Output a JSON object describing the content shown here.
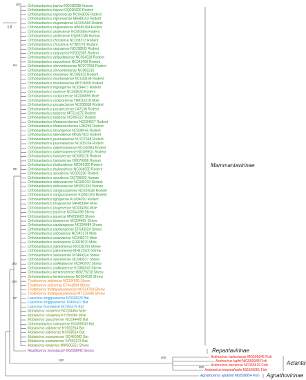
{
  "scale_bar": "1.0",
  "genus_colors": {
    "Orthohantavirus": "#2e9a2e",
    "Thottimvirus": "#e8801e",
    "Loanvirus": "#1a9ad8",
    "Mobatvirus": "#5f8f1a",
    "Reptillovirus": "#9a3fa8",
    "Actinovirus": "#e8201a",
    "Agnathovirus": "#2060d8"
  },
  "leaves": [
    {
      "name": "Orthohantavirus bayoui",
      "info": "NC038298 Human"
    },
    {
      "name": "Orthohantavirus bayoui",
      "info": "GQ200820 Rodent"
    },
    {
      "name": "Orthohantavirus nigrorivense",
      "info": "NC043005 Rodent"
    },
    {
      "name": "Orthohantavirus nigrorivense",
      "info": "AB689163 Rodent"
    },
    {
      "name": "Orthohantavirus maporalense",
      "info": "NC034568 Rodent"
    },
    {
      "name": "Orthohantavirus maporalense",
      "info": "AB689164 Rodent"
    },
    {
      "name": "Orthohantavirus andesense",
      "info": "NC003466 Rodent"
    },
    {
      "name": "Orthohantavirus andesense",
      "info": "OQ092245 Human"
    },
    {
      "name": "Orthohantavirus choclense",
      "info": "NC038373 Rodent"
    },
    {
      "name": "Orthohantavirus choclense",
      "info": "KT983771 Rodent"
    },
    {
      "name": "Orthohantavirus negraense",
      "info": "NC038505 Rodent"
    },
    {
      "name": "Orthohantavirus negraense",
      "info": "KP202359 Rodent"
    },
    {
      "name": "Orthohantavirus delgaditoense",
      "info": "NC034528 Rodent"
    },
    {
      "name": "Orthohantavirus nezoclense",
      "info": "NC043409 Rodent"
    },
    {
      "name": "Orthohantavirus sinnombreense",
      "info": "NC077669 Rodent"
    },
    {
      "name": "Orthohantavirus sinnombreense",
      "info": "NC005216"
    },
    {
      "name": "Orthohantavirus moroense",
      "info": "NC038423 Rodent"
    },
    {
      "name": "Orthohantavirus montanoense",
      "info": "NC034196 Rodent"
    },
    {
      "name": "Orthohantavirus montanoense",
      "info": "AB703008 Rodent"
    },
    {
      "name": "Orthohantavirus fugongense",
      "info": "NC034471 Rodent"
    },
    {
      "name": "Orthohantavirus luxiense",
      "info": "NC038530 Rodent"
    },
    {
      "name": "Orthohantavirus rockportense",
      "info": "NC038696 Mole"
    },
    {
      "name": "Orthohantavirus rockportense",
      "info": "HM015218 Mole"
    },
    {
      "name": "Orthohantavirus prospectense",
      "info": "NC038938 Rodent"
    },
    {
      "name": "Orthohantavirus prospectense",
      "info": "U47136 Rodent"
    },
    {
      "name": "Orthohantavirus tulaense",
      "info": "MT514275 Rodent"
    },
    {
      "name": "Orthohantavirus tulaense",
      "info": "NC005227 Rodent"
    },
    {
      "name": "Orthohantavirus khabarovskense",
      "info": "NC034527 Rodent"
    },
    {
      "name": "Orthohantavirus khabarovskense",
      "info": "U35255 Rodent"
    },
    {
      "name": "Orthohantavirus fusongense",
      "info": "NC038446 Rodent"
    },
    {
      "name": "Orthohantavirus tatenalense",
      "info": "MN267822 Rodent"
    },
    {
      "name": "Orthohantavirus puumalaense",
      "info": "NC077668 Rodent"
    },
    {
      "name": "Orthohantavirus puumalaense",
      "info": "NC005224 Rodent"
    },
    {
      "name": "Orthohantavirus dabieshanense",
      "info": "NC038384 Rodent"
    },
    {
      "name": "Orthohantavirus dabieshanense",
      "info": "NC089611 Rodent"
    },
    {
      "name": "Orthohantavirus hantanense",
      "info": "NC005218 Rodent"
    },
    {
      "name": "Orthohantavirus hantanense",
      "info": "OK079096 Human"
    },
    {
      "name": "Orthohantavirus thailandense",
      "info": "MZ343360 Rodent"
    },
    {
      "name": "Orthohantavirus thailandense",
      "info": "NC034555 Rodent"
    },
    {
      "name": "Orthohantavirus seoulense",
      "info": "NC005236 Rodent"
    },
    {
      "name": "Orthohantavirus seoulense",
      "info": "OQ736692 Human"
    },
    {
      "name": "Orthohantavirus dobravaense",
      "info": "NC005233 Rodent"
    },
    {
      "name": "Orthohantavirus dobravaense",
      "info": "MH251334 Human"
    },
    {
      "name": "Orthohantavirus sangassouense",
      "info": "NC034526 Rodent"
    },
    {
      "name": "Orthohantavirus sangassouense",
      "info": "KQ082303 Rodent"
    },
    {
      "name": "Orthohantavirus tigrayense",
      "info": "KU934010 Rodent"
    },
    {
      "name": "Orthohantavirus brugesense",
      "info": "MK483084 Mole"
    },
    {
      "name": "Orthohantavirus brugesense",
      "info": "NC034394 Mole"
    },
    {
      "name": "Orthohantavirus jejuense",
      "info": "NC034398 Shrew"
    },
    {
      "name": "Orthohantavirus jejuense",
      "info": "MN295683 Shrew"
    },
    {
      "name": "Orthohantavirus boweense",
      "info": "NC034405 Shrew"
    },
    {
      "name": "Orthohantavirus caobangense",
      "info": "NC034484 Shrew"
    },
    {
      "name": "Orthohantavirus caobangense",
      "info": "EF543524 Shrew"
    },
    {
      "name": "Orthohantavirus oxbowense",
      "info": "NC043174 Mole"
    },
    {
      "name": "Orthohantavirus asamaense",
      "info": "NC038273 Mole"
    },
    {
      "name": "Orthohantavirus asamaense",
      "info": "EU929070 Mole"
    },
    {
      "name": "Orthohantavirus yakeshiense",
      "info": "NC038704 Shrew"
    },
    {
      "name": "Orthohantavirus yakeshiense",
      "info": "MH422500 Shrew"
    },
    {
      "name": "Orthohantavirus seewisense",
      "info": "MT484324 Shrew"
    },
    {
      "name": "Orthohantavirus seewisense",
      "info": "NC043527 Shrew"
    },
    {
      "name": "Orthohantavirus asikkalaense",
      "info": "NC043070 Shrew"
    },
    {
      "name": "Orthohantavirus asikkalaense",
      "info": "KC880342 Shrew"
    },
    {
      "name": "Orthohantavirus kenkemeense",
      "info": "MG279218 Shrew"
    },
    {
      "name": "Orthohantavirus kenkemeense",
      "info": "NC034539 Shrew"
    },
    {
      "name": "Thottimvirus imjinense",
      "info": "NC034558 Shrew"
    },
    {
      "name": "Thottimvirus imjinense",
      "info": "EF641804 Shrew"
    },
    {
      "name": "Thottimvirus thottapalayamense",
      "info": "NC034704 Shrew"
    },
    {
      "name": "Thottimvirus thottapalayamense",
      "info": "MT225996 Shrew"
    },
    {
      "name": "Loanvirus longquanense",
      "info": "NC043126 Bat"
    },
    {
      "name": "Loanvirus longquanense",
      "info": "JX465421 Bat"
    },
    {
      "name": "Loanvirus brunaense",
      "info": "NC055375 Bat"
    },
    {
      "name": "Mobatvirus novaense",
      "info": "NC034464 Mole"
    },
    {
      "name": "Mobatvirus novaense",
      "info": "KY780086 Mole"
    },
    {
      "name": "Mobatvirus quezonense",
      "info": "NC034400 Bat"
    },
    {
      "name": "Orthohantavirus robinaense",
      "info": "NC055633 Bat"
    },
    {
      "name": "Mobatvirus laibinense",
      "info": "KY662264 Bat"
    },
    {
      "name": "Mobatvirus laibinense",
      "info": "NC038514 Bat"
    },
    {
      "name": "Mobatvirus xuanonense",
      "info": "OQ466082 Bat"
    },
    {
      "name": "Mobatvirus xuanonense",
      "info": "KY662273 Bat"
    },
    {
      "name": "Mobatvirus lenaense",
      "info": "MW505551 Shrew"
    },
    {
      "name": "Reptillovirus hemidactyli",
      "info": "MG599942 Gecko"
    },
    {
      "name": "Actinovirus halieutaeae",
      "info": "MG599945 Fish"
    },
    {
      "name": "Actinovirus lophii",
      "info": "MG599948 Fish"
    },
    {
      "name": "Actinovirus bernense",
      "info": "NC055639 Fish"
    },
    {
      "name": "Actinovirus triacanthodis",
      "info": "MG599951 Fish"
    },
    {
      "name": "Agnathovirus eptatreti",
      "info": "MG599954 Fish"
    }
  ],
  "groups": [
    "Mammantavirinae",
    "Repantavirinae",
    "Actantavirinae",
    "Agnathovirinae"
  ],
  "support": [
    "100",
    "94",
    "99",
    "100",
    "100",
    "97",
    "100",
    "100",
    "100"
  ]
}
